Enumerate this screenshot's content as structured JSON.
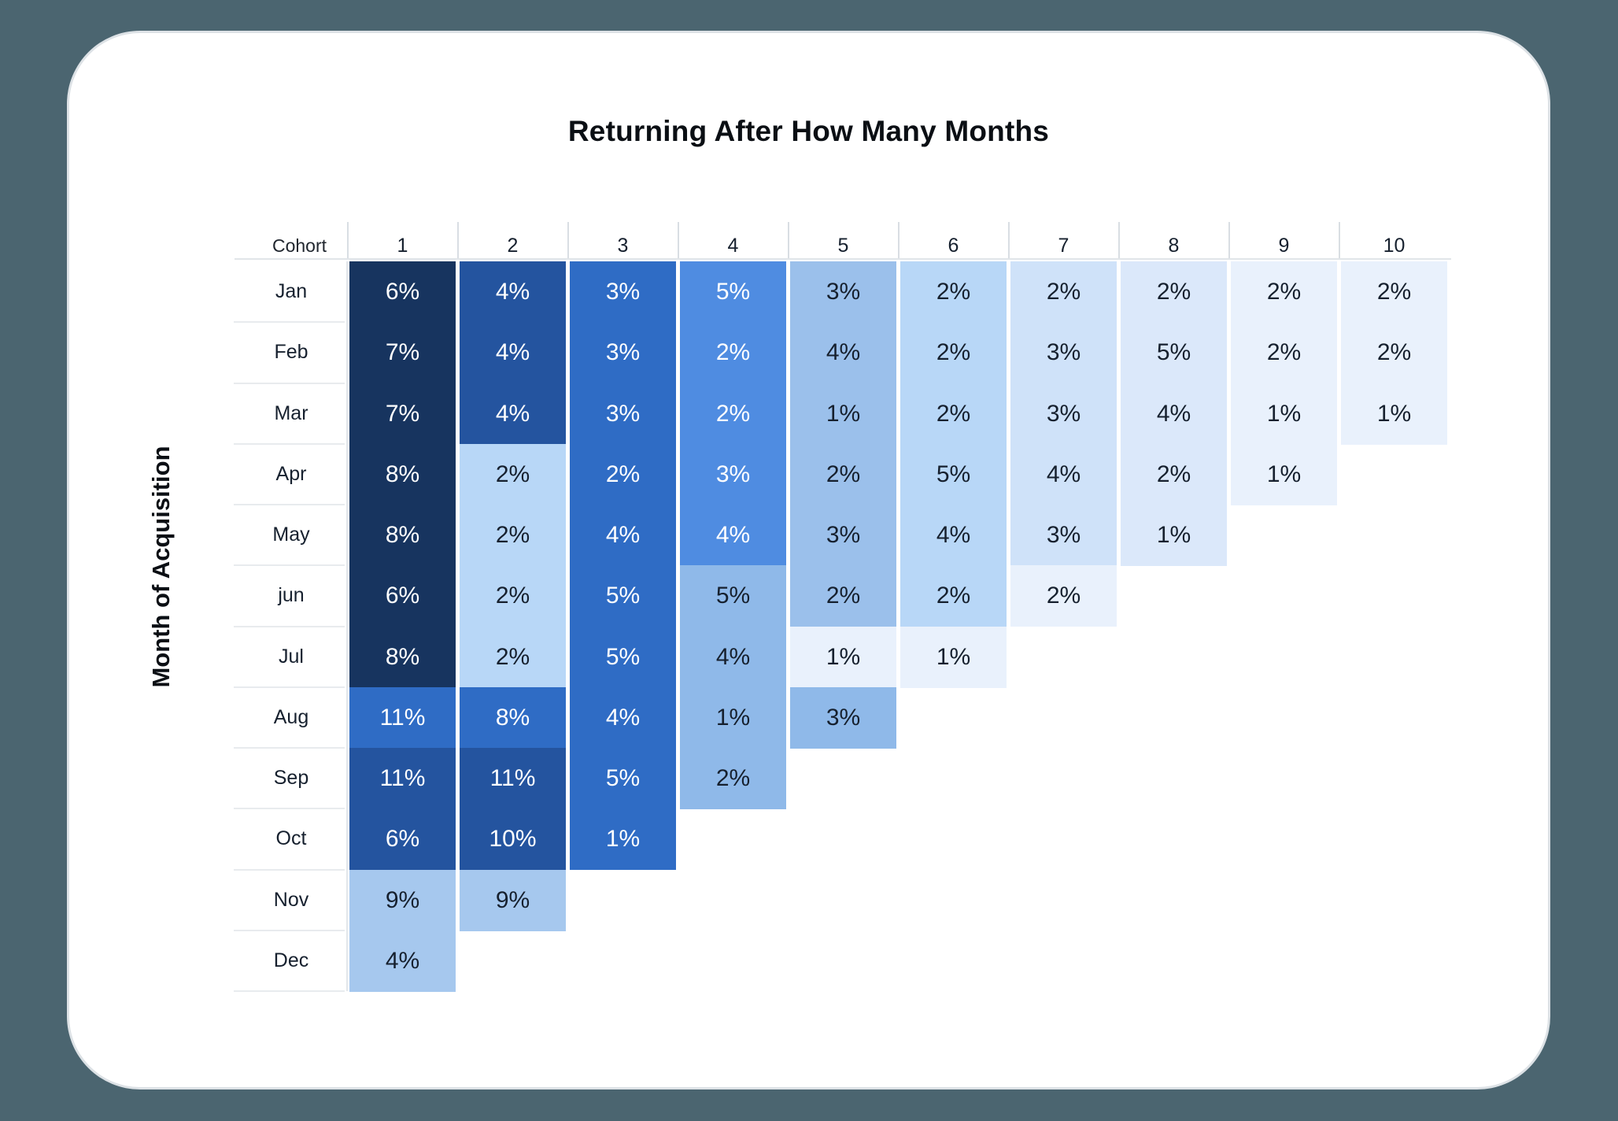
{
  "colors": {
    "page_background": "#4b6570",
    "card_background": "#ffffff"
  },
  "chart_data": {
    "type": "heatmap",
    "title": "Returning After How Many Months",
    "ylabel": "Month of Acquisition",
    "corner_label": "Cohort",
    "legend_position": "none",
    "grid": "label-column separators only",
    "columns": [
      "1",
      "2",
      "3",
      "4",
      "5",
      "6",
      "7",
      "8",
      "9",
      "10"
    ],
    "palette": {
      "navy": {
        "bg": "#17345f",
        "text": "#ffffff"
      },
      "dark": {
        "bg": "#24549f",
        "text": "#ffffff"
      },
      "med": {
        "bg": "#2f6cc5",
        "text": "#ffffff"
      },
      "bright": {
        "bg": "#4f8ce1",
        "text": "#ffffff"
      },
      "ml1": {
        "bg": "#8fb9e9",
        "text": "#16202e"
      },
      "ml2": {
        "bg": "#9bc0eb",
        "text": "#16202e"
      },
      "novlt": {
        "bg": "#a6c8ee",
        "text": "#16202e"
      },
      "lt": {
        "bg": "#b8d7f7",
        "text": "#16202e"
      },
      "p7": {
        "bg": "#cfe2f9",
        "text": "#16202e"
      },
      "p8": {
        "bg": "#dbe8fa",
        "text": "#16202e"
      },
      "vp": {
        "bg": "#e9f1fc",
        "text": "#16202e"
      }
    },
    "rows": [
      {
        "label": "Jan",
        "values": [
          "6%",
          "4%",
          "3%",
          "5%",
          "3%",
          "2%",
          "2%",
          "2%",
          "2%",
          "2%"
        ],
        "keys": [
          "navy",
          "dark",
          "med",
          "bright",
          "ml2",
          "lt",
          "p7",
          "p8",
          "vp",
          "vp"
        ]
      },
      {
        "label": "Feb",
        "values": [
          "7%",
          "4%",
          "3%",
          "2%",
          "4%",
          "2%",
          "3%",
          "5%",
          "2%",
          "2%"
        ],
        "keys": [
          "navy",
          "dark",
          "med",
          "bright",
          "ml2",
          "lt",
          "p7",
          "p8",
          "vp",
          "vp"
        ]
      },
      {
        "label": "Mar",
        "values": [
          "7%",
          "4%",
          "3%",
          "2%",
          "1%",
          "2%",
          "3%",
          "4%",
          "1%",
          "1%"
        ],
        "keys": [
          "navy",
          "dark",
          "med",
          "bright",
          "ml2",
          "lt",
          "p7",
          "p8",
          "vp",
          "vp"
        ]
      },
      {
        "label": "Apr",
        "values": [
          "8%",
          "2%",
          "2%",
          "3%",
          "2%",
          "5%",
          "4%",
          "2%",
          "1%"
        ],
        "keys": [
          "navy",
          "lt",
          "med",
          "bright",
          "ml2",
          "lt",
          "p7",
          "p8",
          "vp"
        ]
      },
      {
        "label": "May",
        "values": [
          "8%",
          "2%",
          "4%",
          "4%",
          "3%",
          "4%",
          "3%",
          "1%"
        ],
        "keys": [
          "navy",
          "lt",
          "med",
          "bright",
          "ml2",
          "lt",
          "p7",
          "p8"
        ]
      },
      {
        "label": "jun",
        "values": [
          "6%",
          "2%",
          "5%",
          "5%",
          "2%",
          "2%",
          "2%"
        ],
        "keys": [
          "navy",
          "lt",
          "med",
          "ml1",
          "ml2",
          "lt",
          "vp"
        ]
      },
      {
        "label": "Jul",
        "values": [
          "8%",
          "2%",
          "5%",
          "4%",
          "1%",
          "1%"
        ],
        "keys": [
          "navy",
          "lt",
          "med",
          "ml1",
          "vp",
          "vp"
        ]
      },
      {
        "label": "Aug",
        "values": [
          "11%",
          "8%",
          "4%",
          "1%",
          "3%"
        ],
        "keys": [
          "med",
          "med",
          "med",
          "ml1",
          "ml1"
        ]
      },
      {
        "label": "Sep",
        "values": [
          "11%",
          "11%",
          "5%",
          "2%"
        ],
        "keys": [
          "dark",
          "dark",
          "med",
          "ml1"
        ]
      },
      {
        "label": "Oct",
        "values": [
          "6%",
          "10%",
          "1%"
        ],
        "keys": [
          "dark",
          "dark",
          "med"
        ]
      },
      {
        "label": "Nov",
        "values": [
          "9%",
          "9%"
        ],
        "keys": [
          "novlt",
          "novlt"
        ]
      },
      {
        "label": "Dec",
        "values": [
          "4%"
        ],
        "keys": [
          "novlt"
        ]
      }
    ]
  }
}
